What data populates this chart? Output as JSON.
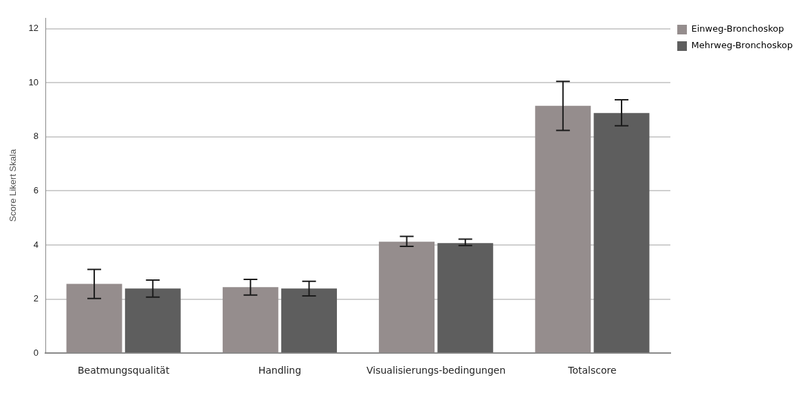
{
  "chart_data": {
    "type": "bar",
    "ylabel": "Score Likert Skala",
    "categories": [
      "Beatmungsqualität",
      "Handling",
      "Visualisierungs-bedingungen",
      "Totalscore"
    ],
    "series": [
      {
        "name": "Einweg-Bronchoskop",
        "color": "#958d8d",
        "values": [
          2.56,
          2.44,
          4.12,
          9.15
        ],
        "errors": [
          [
            2.02,
            3.1
          ],
          [
            2.15,
            2.73
          ],
          [
            3.95,
            4.32
          ],
          [
            8.24,
            10.05
          ]
        ]
      },
      {
        "name": "Mehrweg-Bronchoskop",
        "color": "#5e5e5e",
        "values": [
          2.39,
          2.39,
          4.07,
          8.88
        ],
        "errors": [
          [
            2.07,
            2.7
          ],
          [
            2.12,
            2.66
          ],
          [
            3.98,
            4.22
          ],
          [
            8.41,
            9.37
          ]
        ]
      }
    ],
    "ylim": [
      0,
      12.4
    ],
    "yticks": [
      0,
      2,
      4,
      6,
      8,
      10,
      12
    ],
    "grid": "y",
    "legend": "top right"
  }
}
